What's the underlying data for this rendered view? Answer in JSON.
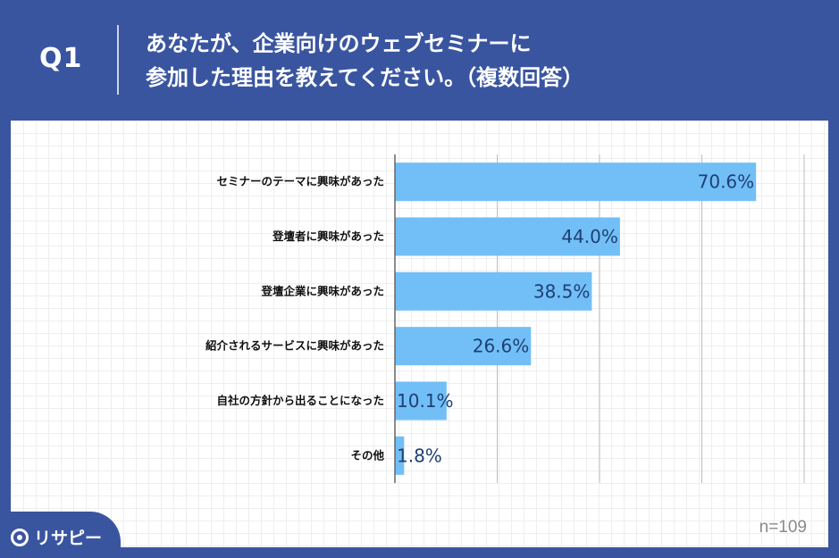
{
  "header": {
    "question_label": "Q1",
    "title_line1": "あなたが、企業向けのウェブセミナーに",
    "title_line2": "参加した理由を教えてください。（複数回答）"
  },
  "chart_data": {
    "type": "bar",
    "orientation": "horizontal",
    "categories": [
      "セミナーのテーマに興味があった",
      "登壇者に興味があった",
      "登壇企業に興味があった",
      "紹介されるサービスに興味があった",
      "自社の方針から出ることになった",
      "その他"
    ],
    "values": [
      70.6,
      44.0,
      38.5,
      26.6,
      10.1,
      1.8
    ],
    "value_labels": [
      "70.6%",
      "44.0%",
      "38.5%",
      "26.6%",
      "10.1%",
      "1.8%"
    ],
    "xlim": [
      0,
      80
    ],
    "grid": true,
    "bar_color": "#72bff7"
  },
  "footer": {
    "sample_size": "n=109",
    "logo_text": "リサピー"
  },
  "colors": {
    "brand": "#3a55a0",
    "value_text": "#1f3f73"
  }
}
